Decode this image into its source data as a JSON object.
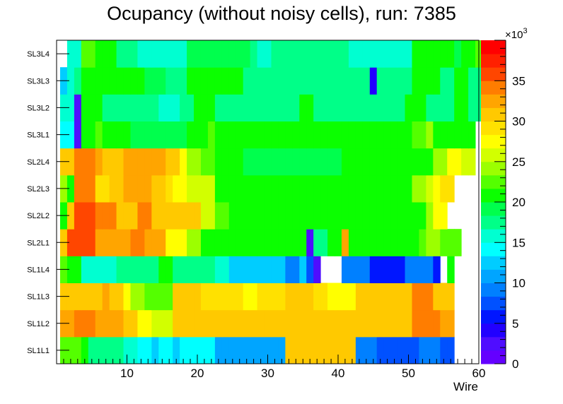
{
  "chart_data": {
    "type": "heatmap",
    "title": "Ocupancy (without noisy cells), run: 7385",
    "xlabel": "Wire",
    "ylabel": "",
    "xlim": [
      0,
      60
    ],
    "x_ticks": [
      10,
      20,
      30,
      40,
      50,
      60
    ],
    "rows_bottom_to_top": [
      "SL1L1",
      "SL1L2",
      "SL1L3",
      "SL1L4",
      "SL2L1",
      "SL2L2",
      "SL2L3",
      "SL2L4",
      "SL3L1",
      "SL3L2",
      "SL3L3",
      "SL3L4"
    ],
    "colorbar": {
      "min": 0,
      "max": 40,
      "multiplier": "×10",
      "exponent": "3",
      "ticks": [
        0,
        5,
        10,
        15,
        20,
        25,
        30,
        35
      ],
      "palette": [
        "#6400ff",
        "#4f0dff",
        "#2200ff",
        "#0016ff",
        "#0051ff",
        "#0080ff",
        "#00a5ff",
        "#00cdff",
        "#00ffff",
        "#00ffd1",
        "#00ff88",
        "#00ff4d",
        "#0bff00",
        "#54ff00",
        "#9cff00",
        "#d2ff00",
        "#ffff00",
        "#ffe100",
        "#ffc900",
        "#ffa500",
        "#ff7d00",
        "#ff4600",
        "#ff2000",
        "#ff0000"
      ]
    },
    "wire_range_per_row": [
      [
        1,
        56
      ],
      [
        1,
        56
      ],
      [
        1,
        56
      ],
      [
        1,
        56
      ],
      [
        1,
        57
      ],
      [
        1,
        55
      ],
      [
        1,
        56
      ],
      [
        1,
        59
      ],
      [
        1,
        59
      ],
      [
        1,
        60
      ],
      [
        1,
        60
      ],
      [
        1,
        60
      ]
    ],
    "occupancy_by_row": [
      [
        22,
        22,
        22,
        21,
        18,
        18,
        18,
        17,
        17,
        16,
        16,
        14,
        14,
        12,
        14,
        14,
        12,
        14,
        14,
        14,
        14,
        14,
        11,
        11,
        11,
        11,
        11,
        11,
        11,
        11,
        11,
        11,
        31,
        31,
        31,
        31,
        31,
        31,
        30,
        30,
        30,
        30,
        9,
        9,
        9,
        8,
        8,
        8,
        7,
        7,
        7,
        9,
        9,
        9,
        8,
        8
      ],
      [
        32,
        32,
        34,
        34,
        34,
        33,
        33,
        33,
        33,
        30,
        30,
        28,
        28,
        26,
        26,
        25,
        30,
        30,
        30,
        30,
        30,
        30,
        30,
        30,
        30,
        30,
        30,
        30,
        30,
        30,
        30,
        30,
        31,
        31,
        31,
        31,
        31,
        31,
        30,
        30,
        30,
        30,
        31,
        31,
        31,
        31,
        31,
        31,
        31,
        31,
        34,
        34,
        34,
        34,
        33,
        33
      ],
      [
        30,
        30,
        30,
        30,
        30,
        31,
        32,
        31,
        31,
        27,
        24,
        24,
        22,
        22,
        22,
        22,
        30,
        30,
        30,
        30,
        29,
        29,
        29,
        29,
        29,
        29,
        28,
        28,
        29,
        29,
        29,
        29,
        30,
        30,
        30,
        30,
        29,
        29,
        28,
        28,
        28,
        28,
        30,
        30,
        30,
        30,
        30,
        30,
        30,
        30,
        34,
        34,
        34,
        30,
        30,
        30
      ],
      [
        22,
        20,
        20,
        15,
        15,
        15,
        15,
        15,
        17,
        17,
        17,
        17,
        17,
        17,
        20,
        20,
        17,
        17,
        17,
        17,
        17,
        17,
        15,
        15,
        12,
        12,
        12,
        12,
        12,
        12,
        12,
        12,
        9,
        9,
        12,
        7,
        3,
        null,
        null,
        null,
        9,
        9,
        9,
        9,
        6,
        6,
        6,
        6,
        6,
        9,
        9,
        9,
        9,
        5,
        null,
        20
      ],
      [
        30,
        36,
        36,
        36,
        36,
        32,
        32,
        32,
        32,
        32,
        34,
        34,
        32,
        32,
        32,
        28,
        28,
        28,
        24,
        24,
        21,
        21,
        21,
        21,
        21,
        21,
        21,
        21,
        21,
        21,
        21,
        21,
        21,
        21,
        21,
        2,
        18,
        18,
        21,
        21,
        33,
        21,
        21,
        21,
        21,
        21,
        21,
        21,
        21,
        21,
        21,
        22,
        24,
        24,
        22,
        22,
        22
      ],
      [
        21,
        30,
        36,
        36,
        36,
        34,
        34,
        34,
        31,
        31,
        31,
        34,
        34,
        31,
        31,
        31,
        30,
        30,
        30,
        30,
        26,
        26,
        23,
        23,
        21,
        21,
        21,
        21,
        21,
        21,
        21,
        21,
        21,
        21,
        21,
        21,
        21,
        21,
        21,
        21,
        21,
        21,
        21,
        21,
        21,
        21,
        21,
        21,
        21,
        21,
        21,
        21,
        24,
        27,
        27
      ],
      [
        24,
        21,
        34,
        34,
        34,
        29,
        29,
        31,
        31,
        32,
        32,
        32,
        32,
        31,
        31,
        29,
        28,
        28,
        26,
        26,
        26,
        26,
        21,
        21,
        21,
        21,
        21,
        21,
        21,
        21,
        21,
        21,
        21,
        21,
        21,
        21,
        21,
        21,
        21,
        21,
        21,
        21,
        21,
        21,
        21,
        21,
        21,
        21,
        21,
        21,
        24,
        24,
        26,
        27,
        29,
        29
      ],
      [
        31,
        31,
        34,
        34,
        34,
        32,
        30,
        30,
        30,
        32,
        32,
        32,
        32,
        32,
        32,
        30,
        30,
        27,
        24,
        24,
        22,
        22,
        21,
        21,
        21,
        21,
        19,
        19,
        19,
        19,
        19,
        19,
        19,
        19,
        19,
        19,
        19,
        19,
        19,
        19,
        21,
        21,
        21,
        21,
        21,
        21,
        21,
        21,
        21,
        21,
        21,
        21,
        20,
        24,
        24,
        27,
        27,
        25,
        25
      ],
      [
        14,
        14,
        3,
        20,
        20,
        22,
        20,
        20,
        20,
        20,
        19,
        19,
        19,
        19,
        19,
        19,
        19,
        19,
        20,
        20,
        20,
        22,
        20,
        20,
        20,
        20,
        20,
        20,
        20,
        20,
        20,
        20,
        21,
        21,
        21,
        21,
        21,
        21,
        21,
        21,
        20,
        20,
        20,
        20,
        20,
        20,
        20,
        20,
        20,
        20,
        23,
        23,
        24,
        20,
        20,
        20,
        20,
        20,
        20
      ],
      [
        16,
        16,
        3,
        20,
        20,
        20,
        18,
        18,
        18,
        18,
        18,
        18,
        18,
        17,
        15,
        15,
        15,
        18,
        18,
        20,
        20,
        20,
        18,
        18,
        18,
        18,
        18,
        18,
        18,
        18,
        18,
        18,
        18,
        18,
        20,
        20,
        18,
        18,
        18,
        18,
        18,
        18,
        18,
        18,
        18,
        18,
        18,
        18,
        18,
        20,
        20,
        20,
        18,
        18,
        18,
        18,
        20,
        20,
        18,
        18
      ],
      [
        12,
        15,
        18,
        20,
        20,
        20,
        20,
        20,
        20,
        20,
        20,
        20,
        19,
        19,
        19,
        18,
        18,
        18,
        20,
        20,
        20,
        20,
        20,
        20,
        20,
        20,
        18,
        18,
        18,
        18,
        18,
        18,
        18,
        18,
        18,
        18,
        18,
        18,
        18,
        18,
        18,
        18,
        18,
        18,
        4,
        18,
        18,
        18,
        18,
        18,
        20,
        20,
        20,
        20,
        18,
        18,
        20,
        20,
        18,
        18
      ],
      [
        null,
        15,
        15,
        23,
        23,
        20,
        20,
        20,
        17,
        17,
        17,
        15,
        15,
        15,
        15,
        15,
        15,
        15,
        19,
        19,
        19,
        19,
        19,
        19,
        19,
        19,
        19,
        18,
        16,
        16,
        18,
        18,
        18,
        18,
        18,
        18,
        18,
        18,
        18,
        18,
        18,
        16,
        16,
        16,
        16,
        16,
        16,
        16,
        16,
        16,
        21,
        21,
        21,
        21,
        21,
        21,
        19,
        20,
        20,
        22
      ]
    ]
  }
}
